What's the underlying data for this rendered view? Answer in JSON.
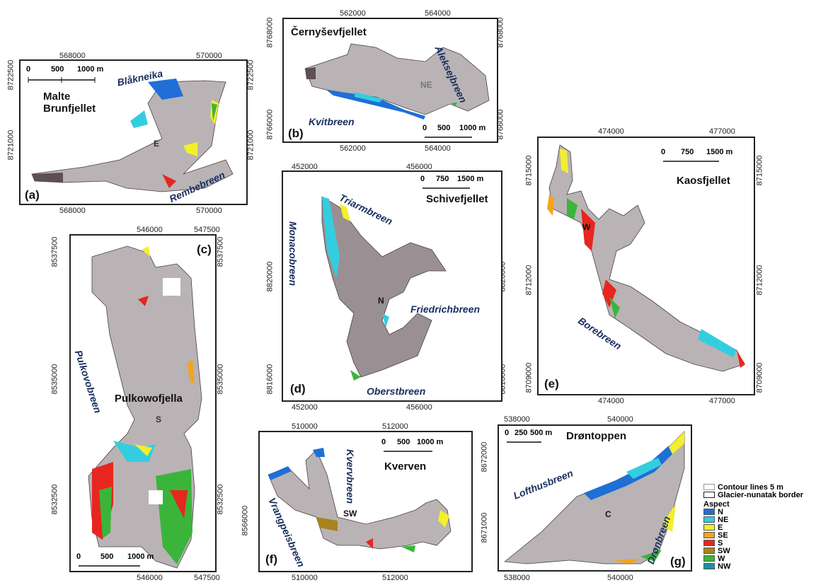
{
  "panels": {
    "a": {
      "label": "(a)",
      "title": "Malte Brunfjellet",
      "title_line1": "Malte",
      "title_line2": "Brunfjellet",
      "x_ticks": [
        "568000",
        "570000"
      ],
      "y_ticks": [
        "8722500",
        "8721000"
      ],
      "scale": {
        "labels": [
          "0",
          "500",
          "1000 m"
        ]
      },
      "glaciers": [
        "Blåkneika",
        "Rembebreen"
      ],
      "aspect_label": "E"
    },
    "b": {
      "label": "(b)",
      "title": "Černyševfjellet",
      "x_ticks": [
        "562000",
        "564000"
      ],
      "y_ticks": [
        "8768000",
        "8766000"
      ],
      "scale": {
        "labels": [
          "0",
          "500",
          "1000 m"
        ]
      },
      "glaciers": [
        "Aleksejbreen",
        "Kvitbreen"
      ],
      "aspect_label": "NE"
    },
    "c": {
      "label": "(c)",
      "title": "Pulkowofjella",
      "x_ticks": [
        "546000",
        "547500"
      ],
      "y_ticks": [
        "8537500",
        "8535000",
        "8532500"
      ],
      "scale": {
        "labels": [
          "0",
          "500",
          "1000 m"
        ]
      },
      "glaciers": [
        "Pulkovobreen"
      ],
      "aspect_label": "S"
    },
    "d": {
      "label": "(d)",
      "title": "Schivefjellet",
      "x_ticks": [
        "452000",
        "456000"
      ],
      "y_ticks": [
        "8820000",
        "8816000"
      ],
      "scale": {
        "labels": [
          "0",
          "750",
          "1500 m"
        ]
      },
      "glaciers": [
        "Triarmbreen",
        "Monacobreen",
        "Friedrichbreen",
        "Oberstbreen"
      ],
      "aspect_label": "N"
    },
    "e": {
      "label": "(e)",
      "title": "Kaosfjellet",
      "x_ticks": [
        "474000",
        "477000"
      ],
      "y_ticks": [
        "8715000",
        "8712000",
        "8709000"
      ],
      "scale": {
        "labels": [
          "0",
          "750",
          "1500 m"
        ]
      },
      "glaciers": [
        "Borebreen"
      ],
      "aspect_label": "W"
    },
    "f": {
      "label": "(f)",
      "title": "Kverven",
      "x_ticks": [
        "510000",
        "512000"
      ],
      "y_ticks": [
        "8566000"
      ],
      "scale": {
        "labels": [
          "0",
          "500",
          "1000 m"
        ]
      },
      "glaciers": [
        "Kvervbreen",
        "Vrangpeisbreen"
      ],
      "aspect_label": "SW"
    },
    "g": {
      "label": "(g)",
      "title": "Drøntoppen",
      "x_ticks": [
        "538000",
        "540000"
      ],
      "y_ticks": [
        "8672000",
        "8671000"
      ],
      "scale": {
        "labels": [
          "0",
          "250",
          "500 m"
        ]
      },
      "glaciers": [
        "Lofthusbreen",
        "Drønbreen"
      ],
      "aspect_label": "C"
    }
  },
  "legend": {
    "contour_label": "Contour lines 5 m",
    "border_label": "Glacier-nunatak border",
    "aspect_title": "Aspect",
    "classes": [
      {
        "label": "N",
        "color": "#1f6fd6"
      },
      {
        "label": "NE",
        "color": "#33cde0"
      },
      {
        "label": "E",
        "color": "#f2ef2c"
      },
      {
        "label": "SE",
        "color": "#f2a51c"
      },
      {
        "label": "S",
        "color": "#e6261f"
      },
      {
        "label": "SW",
        "color": "#a8841e"
      },
      {
        "label": "W",
        "color": "#3ab53a"
      },
      {
        "label": "NW",
        "color": "#1e8fa6"
      }
    ]
  }
}
